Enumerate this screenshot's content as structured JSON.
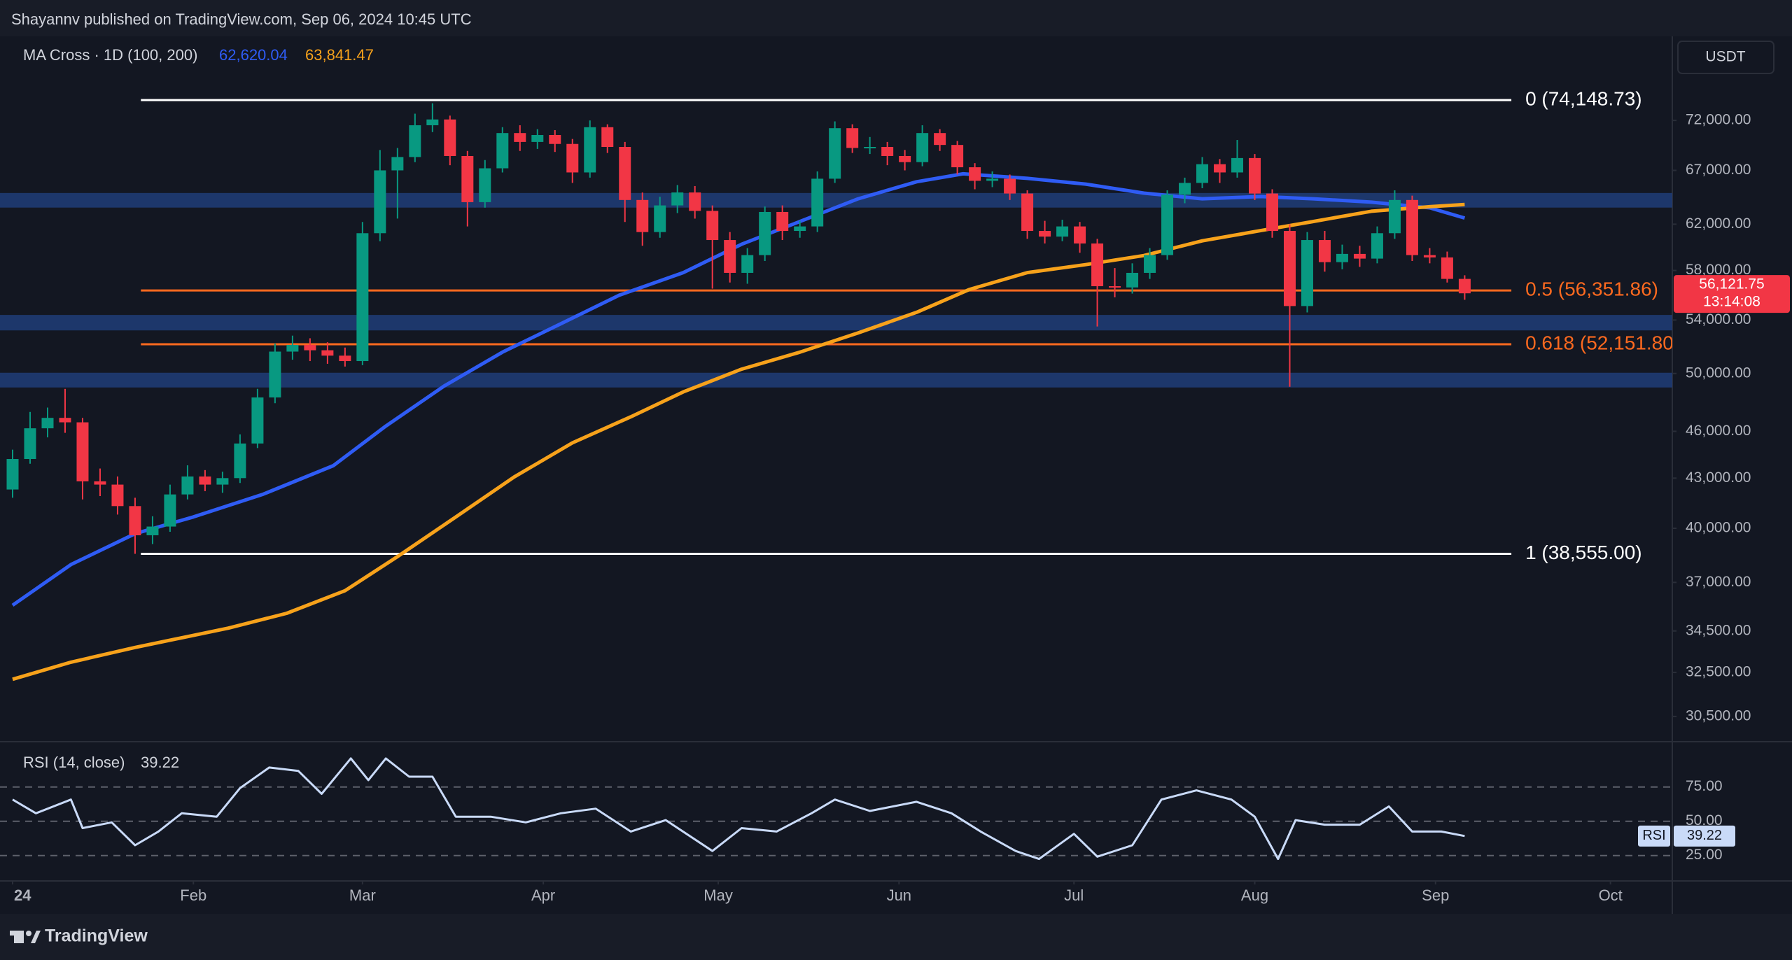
{
  "header": {
    "text": "Shayannv published on TradingView.com, Sep 06, 2024 10:45 UTC"
  },
  "footer": {
    "brand": "TradingView"
  },
  "chart_data": {
    "type": "candlestick",
    "indicator": "MA Cross · 1D (100, 200)",
    "currency": "USDT",
    "up_color": "#089981",
    "down_color": "#f23645",
    "x": [
      0,
      3,
      6,
      9,
      12,
      15,
      18,
      21,
      24,
      27,
      30,
      33,
      36,
      39,
      42,
      45,
      48,
      51,
      54,
      57,
      60,
      63,
      66,
      69,
      72,
      75,
      78,
      81,
      84,
      87,
      90,
      93,
      96,
      99,
      102,
      105,
      108,
      111,
      114,
      117,
      120,
      123,
      126,
      129,
      132,
      135,
      138,
      141,
      144,
      147,
      150,
      153,
      156,
      159,
      162,
      165,
      168,
      171,
      174,
      177,
      180,
      183,
      186,
      189,
      192,
      195,
      198,
      201,
      204,
      207,
      210,
      213,
      216,
      219,
      222,
      225,
      228,
      231,
      234,
      237,
      240,
      243,
      246,
      249
    ],
    "open": [
      42300,
      44200,
      46200,
      46900,
      46600,
      42800,
      42600,
      41300,
      39600,
      40100,
      42000,
      43100,
      42600,
      43000,
      45200,
      48300,
      51600,
      52100,
      51700,
      51300,
      50900,
      61200,
      67000,
      68300,
      71500,
      72100,
      68400,
      64000,
      67200,
      70700,
      69800,
      70500,
      69600,
      66800,
      71300,
      69300,
      64200,
      61300,
      63700,
      64900,
      63200,
      60600,
      57800,
      59300,
      63100,
      61400,
      61800,
      66200,
      71200,
      69200,
      69300,
      68400,
      67800,
      70700,
      69500,
      67300,
      66000,
      66200,
      64800,
      61400,
      60900,
      61800,
      60300,
      56700,
      56600,
      57800,
      59300,
      64700,
      65800,
      67600,
      66800,
      68200,
      64800,
      61400,
      55100,
      60600,
      58700,
      59400,
      59000,
      61200,
      64200,
      59300,
      59100,
      57300
    ],
    "high": [
      44800,
      47300,
      47600,
      48900,
      46900,
      43600,
      43100,
      41800,
      40700,
      42600,
      43800,
      43500,
      43400,
      45800,
      48900,
      52200,
      52800,
      52600,
      52300,
      51900,
      62200,
      69000,
      69200,
      72700,
      73800,
      72500,
      68900,
      68000,
      71300,
      71500,
      71100,
      71000,
      70100,
      72000,
      71600,
      69800,
      64900,
      64500,
      65600,
      65500,
      63700,
      61300,
      59900,
      63600,
      63700,
      62300,
      66900,
      71900,
      71600,
      70300,
      69800,
      69000,
      71500,
      71100,
      69900,
      67700,
      66900,
      66600,
      65100,
      62300,
      62400,
      62200,
      60700,
      58200,
      58600,
      59900,
      65100,
      66300,
      68300,
      68100,
      70000,
      68600,
      65200,
      62000,
      61300,
      61400,
      60200,
      60100,
      61800,
      65100,
      64600,
      59900,
      59600,
      57600
    ],
    "low": [
      41800,
      43900,
      45600,
      45900,
      41700,
      41900,
      40800,
      38555,
      39100,
      39800,
      41700,
      42200,
      42100,
      42700,
      44900,
      47900,
      51000,
      50900,
      50700,
      50500,
      50600,
      60500,
      62500,
      67800,
      70800,
      67500,
      61800,
      63500,
      66800,
      68900,
      69100,
      68800,
      65800,
      66300,
      68700,
      62200,
      60100,
      60800,
      63000,
      62500,
      56500,
      57000,
      56900,
      58800,
      60600,
      60800,
      61300,
      65800,
      68700,
      68600,
      67500,
      67000,
      67400,
      68900,
      66600,
      65200,
      65400,
      64200,
      60700,
      60300,
      60500,
      59500,
      53500,
      55800,
      56100,
      57300,
      58900,
      63900,
      65300,
      65800,
      66300,
      64200,
      60800,
      49050,
      54600,
      57900,
      58100,
      58300,
      58600,
      60700,
      58800,
      58600,
      57000,
      55600
    ],
    "close": [
      44200,
      46200,
      46900,
      46600,
      42800,
      42600,
      41300,
      39600,
      40100,
      42000,
      43100,
      42600,
      43000,
      45200,
      48300,
      51600,
      52100,
      51700,
      51300,
      50900,
      61200,
      67000,
      68300,
      71500,
      72100,
      68400,
      64000,
      67200,
      70700,
      69800,
      70500,
      69600,
      66800,
      71300,
      69300,
      64200,
      61300,
      63700,
      64900,
      63200,
      60600,
      57800,
      59300,
      63100,
      61400,
      61800,
      66200,
      71200,
      69200,
      69300,
      68400,
      67800,
      70700,
      69500,
      67300,
      66000,
      66200,
      64800,
      61400,
      60900,
      61800,
      60300,
      56700,
      56600,
      57800,
      59300,
      64700,
      65800,
      67600,
      66800,
      68200,
      64800,
      61400,
      55100,
      60600,
      58700,
      59400,
      59000,
      61200,
      64200,
      59300,
      59100,
      57300,
      56121.75
    ],
    "xlim": [
      0,
      284.6
    ],
    "xticks": [
      {
        "value": 0,
        "label": "24"
      },
      {
        "value": 31,
        "label": "Feb"
      },
      {
        "value": 60,
        "label": "Mar"
      },
      {
        "value": 91,
        "label": "Apr"
      },
      {
        "value": 121,
        "label": "May"
      },
      {
        "value": 152,
        "label": "Jun"
      },
      {
        "value": 182,
        "label": "Jul"
      },
      {
        "value": 213,
        "label": "Aug"
      },
      {
        "value": 244,
        "label": "Sep"
      },
      {
        "value": 274,
        "label": "Oct"
      }
    ],
    "ylim": [
      29470,
      81270
    ],
    "log_scale": true,
    "yticks": [
      {
        "value": 72000,
        "label": "72,000.00"
      },
      {
        "value": 67000,
        "label": "67,000.00"
      },
      {
        "value": 62000,
        "label": "62,000.00"
      },
      {
        "value": 58000,
        "label": "58,000.00"
      },
      {
        "value": 54000,
        "label": "54,000.00"
      },
      {
        "value": 50000,
        "label": "50,000.00"
      },
      {
        "value": 46000,
        "label": "46,000.00"
      },
      {
        "value": 43000,
        "label": "43,000.00"
      },
      {
        "value": 40000,
        "label": "40,000.00"
      },
      {
        "value": 37000,
        "label": "37,000.00"
      },
      {
        "value": 34500,
        "label": "34,500.00"
      },
      {
        "value": 32500,
        "label": "32,500.00"
      },
      {
        "value": 30500,
        "label": "30,500.00"
      }
    ],
    "last_price_label": "56,121.75",
    "countdown": "13:14:08",
    "moving_averages": [
      {
        "color": "#2f5cf5",
        "legend": "62,620.04",
        "x": [
          0,
          10,
          21,
          31,
          43,
          55,
          64,
          74,
          84,
          94,
          104,
          115,
          125,
          135,
          145,
          155,
          163,
          174,
          184,
          194,
          204,
          214,
          223,
          233,
          243,
          249
        ],
        "values": [
          35800,
          37960,
          39690,
          40660,
          42020,
          43780,
          46350,
          49100,
          51560,
          53710,
          55960,
          57820,
          60230,
          62240,
          64310,
          65910,
          66670,
          66230,
          65690,
          64840,
          64310,
          64520,
          64310,
          64000,
          63480,
          62550
        ]
      },
      {
        "color": "#f7a21b",
        "legend": "63,841.47",
        "x": [
          0,
          10,
          21,
          37,
          47,
          57,
          66,
          76,
          86,
          96,
          106,
          115,
          125,
          135,
          145,
          155,
          164,
          174,
          184,
          194,
          204,
          214,
          223,
          233,
          243,
          249
        ],
        "values": [
          32180,
          32980,
          33690,
          34640,
          35390,
          36560,
          38400,
          40660,
          43070,
          45240,
          46970,
          48690,
          50310,
          51560,
          53010,
          54600,
          56420,
          57820,
          58490,
          59260,
          60530,
          61430,
          62240,
          63170,
          63580,
          63790
        ]
      }
    ],
    "zones": {
      "color": "#1f3b73",
      "ranges": [
        [
          63500,
          64850
        ],
        [
          53200,
          54400
        ],
        [
          49000,
          50050
        ]
      ]
    },
    "levels": {
      "start": 22,
      "end": 257,
      "items": [
        {
          "label": "0 (74,148.73)",
          "value": 74148.73,
          "color": "#ffffff"
        },
        {
          "label": "0.5 (56,351.86)",
          "value": 56351.86,
          "color": "#ff6a1f"
        },
        {
          "label": "0.618 (52,151.80)",
          "value": 52151.8,
          "color": "#ff6a1f"
        },
        {
          "label": "1 (38,555.00)",
          "value": 38555,
          "color": "#ffffff"
        }
      ]
    },
    "rsi": {
      "title": "RSI (14, close)",
      "value_label": "39.22",
      "tag": "RSI",
      "color": "#c9daf8",
      "ylim": [
        7.5,
        107.5
      ],
      "yticks": [
        {
          "value": 75,
          "label": "75.00"
        },
        {
          "value": 50,
          "label": "50.00"
        },
        {
          "value": 25,
          "label": "25.00"
        }
      ],
      "x": [
        0,
        4,
        10,
        12,
        17,
        21,
        25,
        29,
        35,
        39,
        44,
        49,
        53,
        58,
        61,
        64,
        68,
        72,
        76,
        82,
        88,
        94,
        100,
        106,
        112,
        120,
        125,
        131,
        137,
        141,
        147,
        155,
        161,
        166,
        172,
        176,
        182,
        186,
        192,
        197,
        203,
        209,
        213,
        217,
        220,
        225,
        231,
        236,
        240,
        245,
        249
      ],
      "values": [
        65.8,
        55.8,
        65.8,
        45,
        49.2,
        32.5,
        42.5,
        55.8,
        53.3,
        74.2,
        89.2,
        86.7,
        70,
        95.8,
        80,
        95.8,
        82.5,
        82.5,
        53.3,
        53.3,
        49.2,
        55.8,
        59.2,
        42.5,
        50.8,
        28.3,
        45,
        42.5,
        55.8,
        65.8,
        57.5,
        64.2,
        55.8,
        42.5,
        28.3,
        22.5,
        40.8,
        24.2,
        32.5,
        65.8,
        72.5,
        65.8,
        53.3,
        22.5,
        50.8,
        47.5,
        47.5,
        60.8,
        42.5,
        42.5,
        39.22
      ]
    }
  }
}
